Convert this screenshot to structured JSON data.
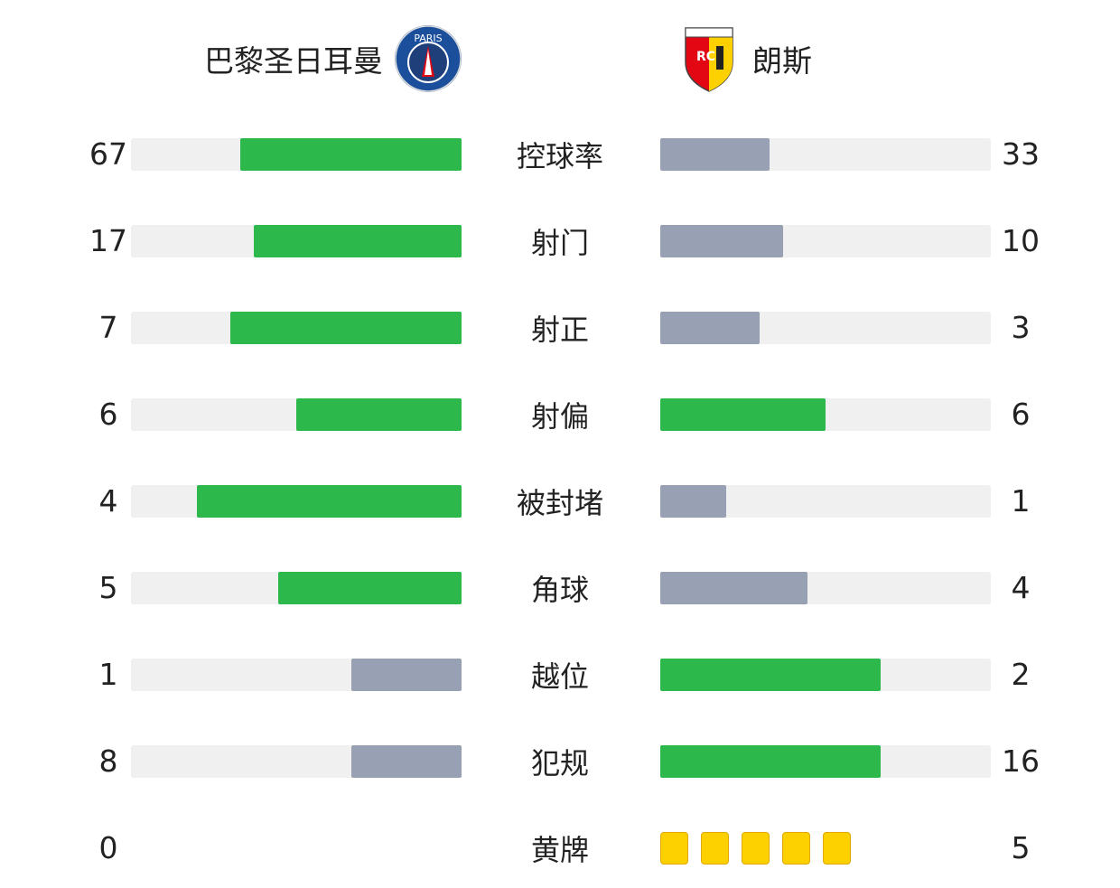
{
  "home": {
    "name": "巴黎圣日耳曼",
    "logo": "psg-crest",
    "logo_text": "PARIS"
  },
  "away": {
    "name": "朗斯",
    "logo": "rc-lens-crest",
    "logo_text": "RCL"
  },
  "colors": {
    "leader": "#2db84c",
    "trailer": "#97a1b3",
    "track": "#f0f0f0",
    "yellow_card": "#fdd100"
  },
  "stats": [
    {
      "label": "控球率",
      "home": "67",
      "away": "33"
    },
    {
      "label": "射门",
      "home": "17",
      "away": "10"
    },
    {
      "label": "射正",
      "home": "7",
      "away": "3"
    },
    {
      "label": "射偏",
      "home": "6",
      "away": "6"
    },
    {
      "label": "被封堵",
      "home": "4",
      "away": "1"
    },
    {
      "label": "角球",
      "home": "5",
      "away": "4"
    },
    {
      "label": "越位",
      "home": "1",
      "away": "2"
    },
    {
      "label": "犯规",
      "home": "8",
      "away": "16"
    },
    {
      "label": "黄牌",
      "home": "0",
      "away": "5",
      "type": "cards"
    }
  ]
}
